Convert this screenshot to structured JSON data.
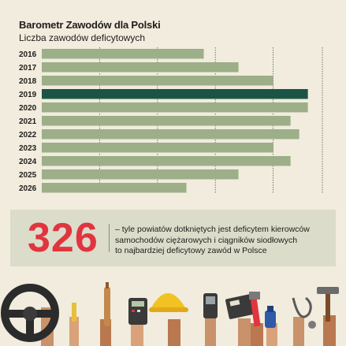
{
  "chart_data": {
    "type": "bar",
    "orientation": "horizontal",
    "title": "Barometr Zawodów dla Polski",
    "subtitle": "Liczba zawodów deficytowych",
    "categories": [
      "2016",
      "2017",
      "2018",
      "2019",
      "2020",
      "2021",
      "2022",
      "2023",
      "2024",
      "2025",
      "2026"
    ],
    "values": [
      28,
      34,
      40,
      46,
      46,
      43,
      44.5,
      40,
      43,
      34,
      25
    ],
    "highlight_index": 3,
    "xlim": [
      0,
      50
    ],
    "grid": "vertical",
    "colors": {
      "bar": "#9caf88",
      "highlight": "#1b5444",
      "grid": "#5a5a50"
    }
  },
  "stat": {
    "number": "326",
    "line1": "– tyle powiatów dotkniętych jest deficytem kierowców",
    "line2": "samochodów ciężarowych i ciągników siodłowych",
    "line3": "to najbardziej deficytowy zawód w Polsce"
  },
  "illustration": {
    "items": [
      "steering-wheel-icon",
      "ruler-icon",
      "rolling-pin-icon",
      "calculator-icon",
      "hard-hat-icon",
      "phone-icon",
      "cash-register-icon",
      "pipe-wrench-icon",
      "spray-bottle-icon",
      "stethoscope-icon",
      "hammer-icon"
    ]
  }
}
